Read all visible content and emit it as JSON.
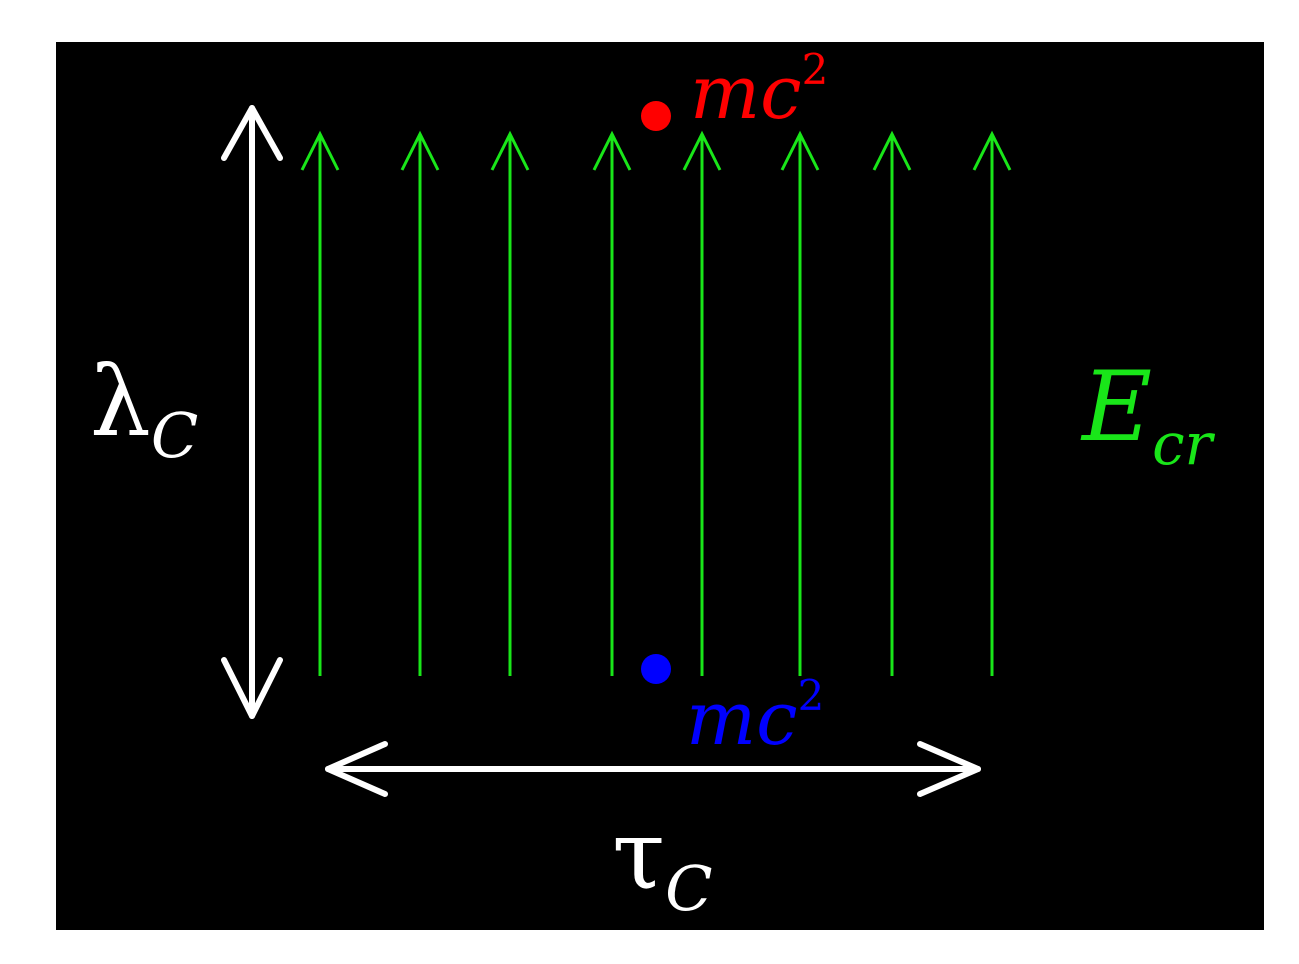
{
  "colors": {
    "page_background": "#ffffff",
    "panel_background": "#000000",
    "field_lines": "#19e619",
    "double_arrows": "#ffffff",
    "particle_top": "#ff0000",
    "particle_bottom": "#0000ff"
  },
  "field": {
    "line_count": 8,
    "direction": "up",
    "label": {
      "main": "E",
      "subscript": "cr"
    }
  },
  "vertical_extent": {
    "label": {
      "main": "λ",
      "subscript": "C"
    }
  },
  "horizontal_extent": {
    "label": {
      "main": "τ",
      "subscript": "C"
    }
  },
  "particles": [
    {
      "name": "top",
      "label": {
        "main": "mc",
        "superscript": "2"
      }
    },
    {
      "name": "bottom",
      "label": {
        "main": "mc",
        "superscript": "2"
      }
    }
  ]
}
